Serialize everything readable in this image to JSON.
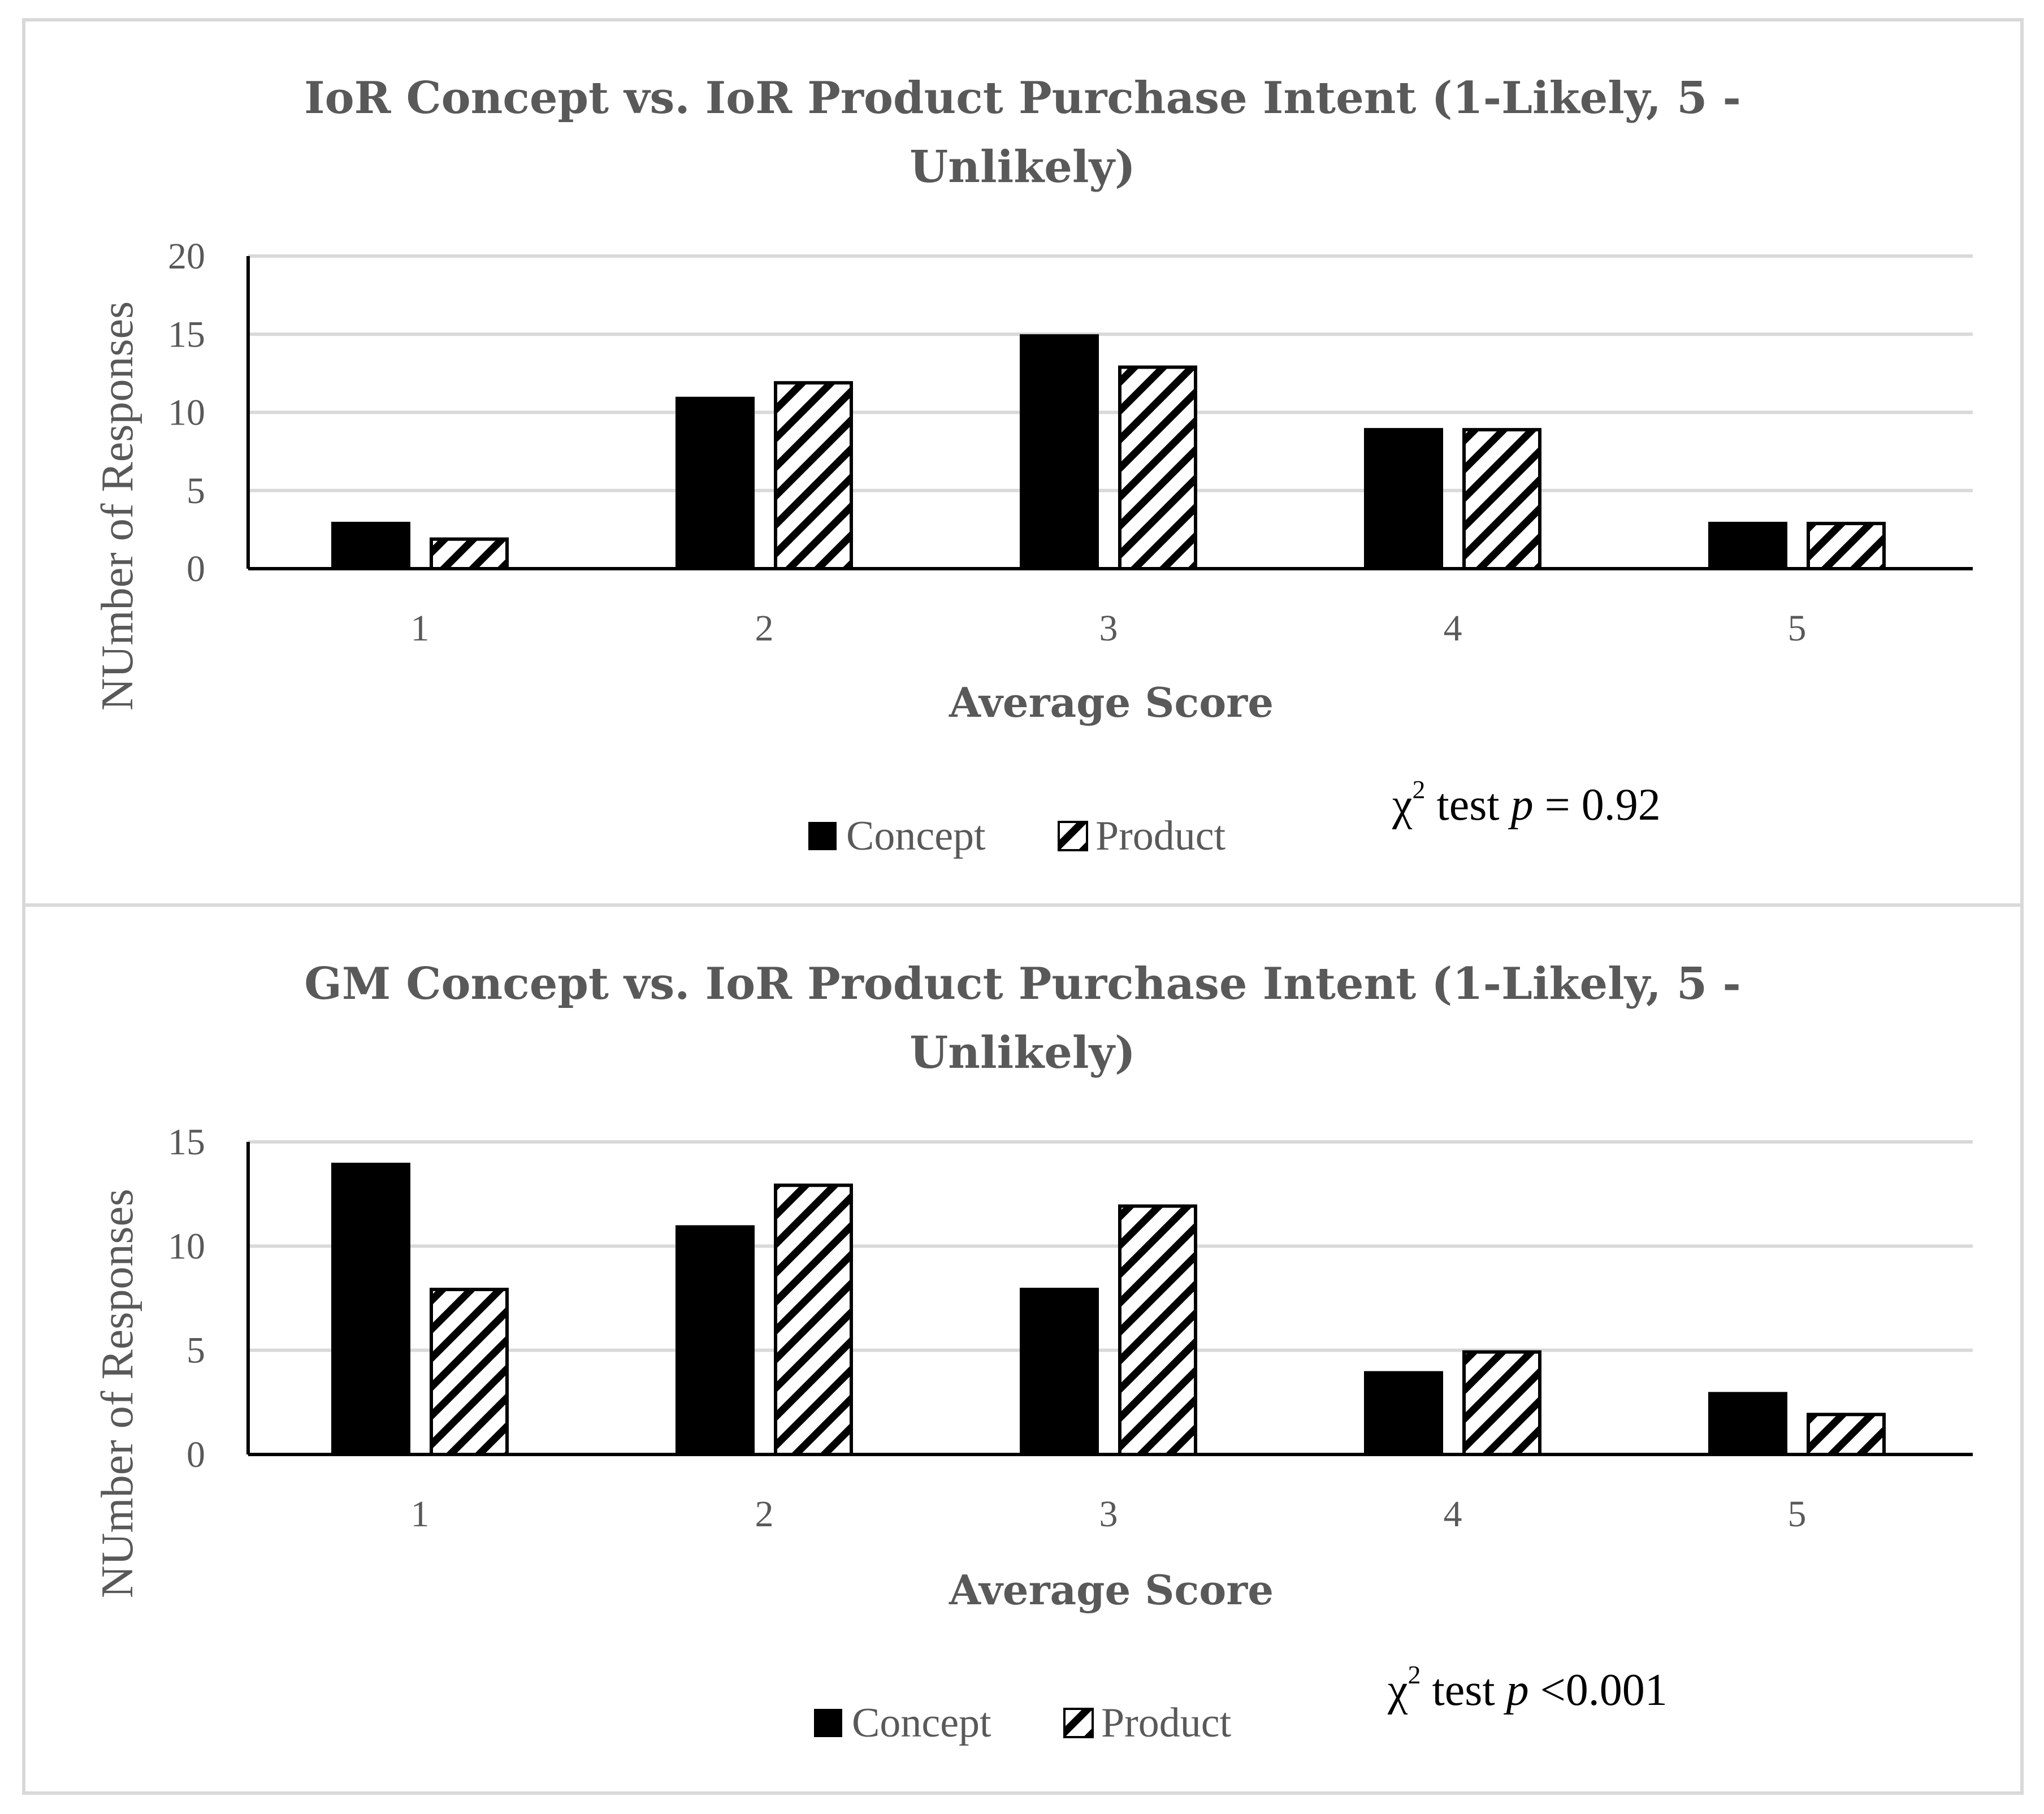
{
  "colors": {
    "concept": "#000000",
    "product_pattern": "diagonal-hatch-black-on-white",
    "grid": "#d9d9d9",
    "frame": "#d9d9d9",
    "text": "#595959"
  },
  "chart_data": [
    {
      "type": "bar",
      "title_lines": [
        "IoR Concept vs. IoR Product Purchase Intent (1-Likely,  5 -",
        "Unlikely)"
      ],
      "xlabel": "Average Score",
      "ylabel": "NUmber of Responses",
      "categories": [
        "1",
        "2",
        "3",
        "4",
        "5"
      ],
      "ylim": [
        0,
        20
      ],
      "yticks": [
        0,
        5,
        10,
        15,
        20
      ],
      "grid": true,
      "legend_position": "bottom",
      "series": [
        {
          "name": "Concept",
          "values": [
            3,
            11,
            15,
            9,
            3
          ]
        },
        {
          "name": "Product",
          "values": [
            2,
            12,
            13,
            9,
            3
          ]
        }
      ],
      "annotation": {
        "chi": "χ",
        "sup": "2",
        "test": " test ",
        "p": "p",
        "rest": " = 0.92"
      }
    },
    {
      "type": "bar",
      "title_lines": [
        "GM Concept vs. IoR Product Purchase Intent (1-Likely,  5 -",
        "Unlikely)"
      ],
      "xlabel": "Average Score",
      "ylabel": "NUmber of Responses",
      "categories": [
        "1",
        "2",
        "3",
        "4",
        "5"
      ],
      "ylim": [
        0,
        15
      ],
      "yticks": [
        0,
        5,
        10,
        15
      ],
      "grid": true,
      "legend_position": "bottom",
      "series": [
        {
          "name": "Concept",
          "values": [
            14,
            11,
            8,
            4,
            3
          ]
        },
        {
          "name": "Product",
          "values": [
            8,
            13,
            12,
            5,
            2
          ]
        }
      ],
      "annotation": {
        "chi": "χ",
        "sup": "2",
        "test": " test ",
        "p": "p",
        "rest": " <0.001"
      }
    }
  ]
}
